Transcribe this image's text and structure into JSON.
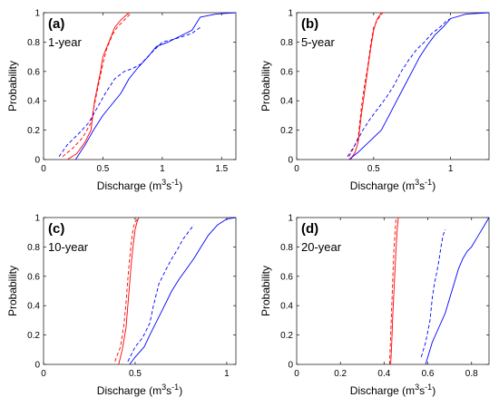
{
  "chart_data": [
    {
      "type": "line",
      "panel_letter": "(a)",
      "period": "1-year",
      "xlabel": "Discharge (m",
      "xlabel_sup1": "3",
      "xlabel_mid": "s",
      "xlabel_sup2": "-1",
      "xlabel_end": ")",
      "ylabel": "Probability",
      "xlim": [
        0,
        1.62
      ],
      "ylim": [
        0,
        1
      ],
      "xticks": [
        0,
        0.5,
        1,
        1.5
      ],
      "xtick_labels": [
        "0",
        "0.5",
        "1",
        "1.5"
      ],
      "yticks": [
        0,
        0.2,
        0.4,
        0.6,
        0.8,
        1
      ],
      "ytick_labels": [
        "0",
        "0.2",
        "0.4",
        "0.6",
        "0.8",
        "1"
      ],
      "grid": false,
      "series": [
        {
          "color": "#ff0000",
          "style": "solid",
          "x": [
            0.2,
            0.28,
            0.35,
            0.4,
            0.43,
            0.45,
            0.48,
            0.5,
            0.55,
            0.6,
            0.65,
            0.72
          ],
          "y": [
            0.0,
            0.04,
            0.12,
            0.2,
            0.4,
            0.48,
            0.6,
            0.7,
            0.8,
            0.9,
            0.95,
            1.0
          ]
        },
        {
          "color": "#ff0000",
          "style": "dashed",
          "x": [
            0.16,
            0.25,
            0.33,
            0.4,
            0.43,
            0.46,
            0.5,
            0.53,
            0.58,
            0.62,
            0.68,
            0.74
          ],
          "y": [
            0.02,
            0.08,
            0.15,
            0.25,
            0.38,
            0.5,
            0.65,
            0.75,
            0.85,
            0.9,
            0.95,
            1.0
          ]
        },
        {
          "color": "#0000ff",
          "style": "solid",
          "x": [
            0.27,
            0.35,
            0.42,
            0.5,
            0.58,
            0.65,
            0.72,
            0.8,
            0.88,
            0.95,
            1.05,
            1.15,
            1.25,
            1.32,
            1.45,
            1.62
          ],
          "y": [
            0.0,
            0.1,
            0.2,
            0.3,
            0.38,
            0.45,
            0.55,
            0.63,
            0.7,
            0.77,
            0.8,
            0.84,
            0.88,
            0.97,
            0.99,
            1.0
          ]
        },
        {
          "color": "#0000ff",
          "style": "dashed",
          "x": [
            0.13,
            0.2,
            0.3,
            0.38,
            0.45,
            0.52,
            0.6,
            0.68,
            0.75,
            0.82,
            0.9,
            1.0,
            1.1,
            1.18,
            1.25,
            1.32
          ],
          "y": [
            0.02,
            0.1,
            0.18,
            0.25,
            0.35,
            0.45,
            0.55,
            0.6,
            0.62,
            0.65,
            0.72,
            0.8,
            0.82,
            0.84,
            0.86,
            0.9
          ]
        }
      ]
    },
    {
      "type": "line",
      "panel_letter": "(b)",
      "period": "5-year",
      "xlabel": "Discharge (m",
      "xlabel_sup1": "3",
      "xlabel_mid": "s",
      "xlabel_sup2": "-1",
      "xlabel_end": ")",
      "ylabel": "Probability",
      "xlim": [
        0,
        1.25
      ],
      "ylim": [
        0,
        1
      ],
      "xticks": [
        0,
        0.5,
        1
      ],
      "xtick_labels": [
        "0",
        "0.5",
        "1"
      ],
      "yticks": [
        0,
        0.2,
        0.4,
        0.6,
        0.8,
        1
      ],
      "ytick_labels": [
        "0",
        "0.2",
        "0.4",
        "0.6",
        "0.8",
        "1"
      ],
      "grid": false,
      "series": [
        {
          "color": "#ff0000",
          "style": "solid",
          "x": [
            0.35,
            0.38,
            0.4,
            0.42,
            0.44,
            0.46,
            0.48,
            0.5,
            0.52,
            0.55
          ],
          "y": [
            0.0,
            0.05,
            0.12,
            0.3,
            0.45,
            0.6,
            0.75,
            0.88,
            0.95,
            1.0
          ]
        },
        {
          "color": "#ff0000",
          "style": "dashed",
          "x": [
            0.34,
            0.37,
            0.4,
            0.42,
            0.44,
            0.46,
            0.48,
            0.5,
            0.53,
            0.56
          ],
          "y": [
            0.02,
            0.08,
            0.15,
            0.35,
            0.5,
            0.62,
            0.78,
            0.9,
            0.96,
            1.0
          ]
        },
        {
          "color": "#0000ff",
          "style": "solid",
          "x": [
            0.34,
            0.4,
            0.45,
            0.5,
            0.55,
            0.6,
            0.65,
            0.7,
            0.75,
            0.8,
            0.85,
            0.9,
            0.95,
            1.0,
            1.1,
            1.25
          ],
          "y": [
            0.0,
            0.05,
            0.1,
            0.15,
            0.2,
            0.3,
            0.4,
            0.5,
            0.6,
            0.7,
            0.78,
            0.85,
            0.9,
            0.96,
            0.99,
            1.0
          ]
        },
        {
          "color": "#0000ff",
          "style": "dashed",
          "x": [
            0.33,
            0.38,
            0.43,
            0.48,
            0.53,
            0.58,
            0.63,
            0.68,
            0.73,
            0.78,
            0.83,
            0.88,
            0.93,
            0.97,
            1.0
          ],
          "y": [
            0.02,
            0.1,
            0.2,
            0.28,
            0.35,
            0.42,
            0.5,
            0.6,
            0.68,
            0.75,
            0.8,
            0.86,
            0.9,
            0.94,
            0.96
          ]
        }
      ]
    },
    {
      "type": "line",
      "panel_letter": "(c)",
      "period": "10-year",
      "xlabel": "Discharge (m",
      "xlabel_sup1": "3",
      "xlabel_mid": "s",
      "xlabel_sup2": "-1",
      "xlabel_end": ")",
      "ylabel": "Probability",
      "xlim": [
        0,
        1.05
      ],
      "ylim": [
        0,
        1
      ],
      "xticks": [
        0,
        0.5,
        1
      ],
      "xtick_labels": [
        "0",
        "0.5",
        "1"
      ],
      "yticks": [
        0,
        0.2,
        0.4,
        0.6,
        0.8,
        1
      ],
      "ytick_labels": [
        "0",
        "0.2",
        "0.4",
        "0.6",
        "0.8",
        "1"
      ],
      "grid": false,
      "series": [
        {
          "color": "#ff0000",
          "style": "solid",
          "x": [
            0.41,
            0.43,
            0.45,
            0.46,
            0.47,
            0.48,
            0.49,
            0.5,
            0.51,
            0.52
          ],
          "y": [
            0.0,
            0.1,
            0.25,
            0.4,
            0.55,
            0.7,
            0.82,
            0.92,
            0.97,
            1.0
          ]
        },
        {
          "color": "#ff0000",
          "style": "dashed",
          "x": [
            0.39,
            0.42,
            0.44,
            0.45,
            0.46,
            0.47,
            0.48,
            0.49,
            0.5,
            0.52
          ],
          "y": [
            0.02,
            0.12,
            0.28,
            0.42,
            0.58,
            0.72,
            0.84,
            0.93,
            0.97,
            1.0
          ]
        },
        {
          "color": "#0000ff",
          "style": "solid",
          "x": [
            0.47,
            0.5,
            0.55,
            0.58,
            0.62,
            0.66,
            0.7,
            0.74,
            0.78,
            0.82,
            0.86,
            0.9,
            0.95,
            1.0,
            1.05
          ],
          "y": [
            0.0,
            0.05,
            0.12,
            0.2,
            0.3,
            0.4,
            0.5,
            0.58,
            0.65,
            0.72,
            0.8,
            0.88,
            0.95,
            0.99,
            1.0
          ]
        },
        {
          "color": "#0000ff",
          "style": "dashed",
          "x": [
            0.46,
            0.5,
            0.54,
            0.58,
            0.6,
            0.63,
            0.67,
            0.7,
            0.73,
            0.76,
            0.79,
            0.82
          ],
          "y": [
            0.02,
            0.12,
            0.18,
            0.28,
            0.4,
            0.55,
            0.65,
            0.72,
            0.78,
            0.85,
            0.9,
            0.95
          ]
        }
      ]
    },
    {
      "type": "line",
      "panel_letter": "(d)",
      "period": "20-year",
      "xlabel": "Discharge (m",
      "xlabel_sup1": "3",
      "xlabel_mid": "s",
      "xlabel_sup2": "-1",
      "xlabel_end": ")",
      "ylabel": "Probability",
      "xlim": [
        0,
        0.88
      ],
      "ylim": [
        0,
        1
      ],
      "xticks": [
        0,
        0.2,
        0.4,
        0.6,
        0.8
      ],
      "xtick_labels": [
        "0",
        "0.2",
        "0.4",
        "0.6",
        "0.8"
      ],
      "yticks": [
        0,
        0.2,
        0.4,
        0.6,
        0.8,
        1
      ],
      "ytick_labels": [
        "0",
        "0.2",
        "0.4",
        "0.6",
        "0.8",
        "1"
      ],
      "grid": false,
      "series": [
        {
          "color": "#ff0000",
          "style": "solid",
          "x": [
            0.43,
            0.435,
            0.44,
            0.445,
            0.45,
            0.455,
            0.46,
            0.465
          ],
          "y": [
            0.0,
            0.15,
            0.35,
            0.5,
            0.65,
            0.8,
            0.92,
            1.0
          ]
        },
        {
          "color": "#ff0000",
          "style": "dashed",
          "x": [
            0.425,
            0.43,
            0.435,
            0.44,
            0.445,
            0.45,
            0.455
          ],
          "y": [
            0.0,
            0.2,
            0.4,
            0.6,
            0.78,
            0.9,
            1.0
          ]
        },
        {
          "color": "#0000ff",
          "style": "solid",
          "x": [
            0.59,
            0.62,
            0.65,
            0.68,
            0.7,
            0.72,
            0.74,
            0.76,
            0.78,
            0.8,
            0.82,
            0.84,
            0.86,
            0.88
          ],
          "y": [
            0.0,
            0.15,
            0.25,
            0.35,
            0.45,
            0.55,
            0.65,
            0.72,
            0.77,
            0.8,
            0.85,
            0.9,
            0.95,
            1.0
          ]
        },
        {
          "color": "#0000ff",
          "style": "dashed",
          "x": [
            0.57,
            0.59,
            0.61,
            0.62,
            0.63,
            0.64,
            0.65,
            0.66,
            0.67,
            0.68
          ],
          "y": [
            0.05,
            0.15,
            0.3,
            0.45,
            0.55,
            0.62,
            0.7,
            0.8,
            0.88,
            0.92
          ]
        }
      ]
    }
  ]
}
